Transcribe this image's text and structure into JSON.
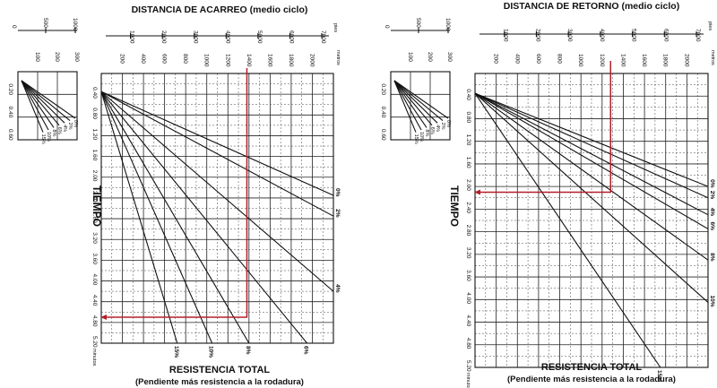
{
  "chart_data": [
    {
      "type": "line",
      "title": "DISTANCIA DE ACARREO (medio ciclo)",
      "xlabel": "RESISTENCIA TOTAL",
      "xlabel_sub": "(Pendiente más resistencia a la rodadura)",
      "ylabel": "TIEMPO",
      "y_unit": "minutos",
      "y_ticks": [
        "0.40",
        "0.80",
        "1.20",
        "1.60",
        "2.00",
        "2.40",
        "2.80",
        "3.20",
        "3.60",
        "4.00",
        "4.40",
        "4.80",
        "5.20"
      ],
      "ylim": [
        0,
        5.2
      ],
      "distance_m_unit": "metros",
      "distance_m_ticks": [
        "200",
        "400",
        "600",
        "800",
        "1000",
        "1200",
        "1400",
        "1600",
        "1800",
        "2000"
      ],
      "distance_m_max": 2200,
      "distance_ft_unit": "pies",
      "distance_ft_ticks": [
        "1000",
        "2000",
        "3000",
        "4000",
        "5000",
        "6000",
        "7000"
      ],
      "inset_m_ticks": [
        "100",
        "200",
        "300"
      ],
      "inset_ft_ticks": [
        "500",
        "1000"
      ],
      "inset_y_ticks": [
        "0.20",
        "0.40",
        "0.60"
      ],
      "series": [
        {
          "name": "0%",
          "values": [
            [
              0,
              0.35
            ],
            [
              2200,
              2.35
            ]
          ]
        },
        {
          "name": "2%",
          "values": [
            [
              0,
              0.35
            ],
            [
              2200,
              2.75
            ]
          ]
        },
        {
          "name": "4%",
          "values": [
            [
              0,
              0.35
            ],
            [
              2200,
              4.2
            ]
          ]
        },
        {
          "name": "6%",
          "values": [
            [
              0,
              0.35
            ],
            [
              1950,
              5.2
            ]
          ]
        },
        {
          "name": "8%",
          "values": [
            [
              0,
              0.35
            ],
            [
              1400,
              5.2
            ]
          ]
        },
        {
          "name": "10%",
          "values": [
            [
              0,
              0.35
            ],
            [
              1050,
              5.2
            ]
          ]
        },
        {
          "name": "15%",
          "values": [
            [
              0,
              0.35
            ],
            [
              720,
              5.2
            ]
          ]
        }
      ],
      "inset_series_labels": [
        "0%",
        "2%",
        "4%",
        "6%",
        "8%",
        "10%",
        "15%"
      ],
      "example_reading": {
        "distance_m": 1380,
        "time_min": 4.7
      }
    },
    {
      "type": "line",
      "title": "DISTANCIA DE RETORNO (medio ciclo)",
      "xlabel": "RESISTENCIA TOTAL",
      "xlabel_sub": "(Pendiente más resistencia a la rodadura)",
      "ylabel": "TIEMPO",
      "y_unit": "minutos",
      "y_ticks": [
        "0.40",
        "0.80",
        "1.20",
        "1.60",
        "2.00",
        "2.40",
        "2.80",
        "3.20",
        "3.60",
        "4.00",
        "4.40",
        "4.80",
        "5.20"
      ],
      "ylim": [
        0,
        5.2
      ],
      "distance_m_unit": "metros",
      "distance_m_ticks": [
        "200",
        "400",
        "600",
        "800",
        "1000",
        "1200",
        "1400",
        "1600",
        "1800",
        "2000"
      ],
      "distance_m_max": 2200,
      "distance_ft_unit": "pies",
      "distance_ft_ticks": [
        "1000",
        "2000",
        "3000",
        "4000",
        "5000",
        "6000",
        "7000"
      ],
      "inset_m_ticks": [
        "100",
        "200",
        "300"
      ],
      "inset_ft_ticks": [
        "500",
        "1000"
      ],
      "inset_y_ticks": [
        "0.20",
        "0.40",
        "0.60"
      ],
      "series": [
        {
          "name": "0%",
          "values": [
            [
              0,
              0.35
            ],
            [
              2200,
              2.0
            ]
          ]
        },
        {
          "name": "2%",
          "values": [
            [
              0,
              0.35
            ],
            [
              2200,
              2.2
            ]
          ]
        },
        {
          "name": "4%",
          "values": [
            [
              0,
              0.35
            ],
            [
              2200,
              2.5
            ]
          ]
        },
        {
          "name": "6%",
          "values": [
            [
              0,
              0.35
            ],
            [
              2200,
              2.75
            ]
          ]
        },
        {
          "name": "8%",
          "values": [
            [
              0,
              0.35
            ],
            [
              2200,
              3.3
            ]
          ]
        },
        {
          "name": "10%",
          "values": [
            [
              0,
              0.35
            ],
            [
              2200,
              4.05
            ]
          ]
        },
        {
          "name": "15%",
          "values": [
            [
              0,
              0.35
            ],
            [
              1750,
              5.2
            ]
          ]
        }
      ],
      "inset_series_labels": [
        "0%",
        "2%",
        "4%",
        "6%",
        "8%",
        "10%",
        "15%"
      ],
      "example_reading": {
        "distance_m": 1280,
        "time_min": 2.1
      }
    }
  ]
}
